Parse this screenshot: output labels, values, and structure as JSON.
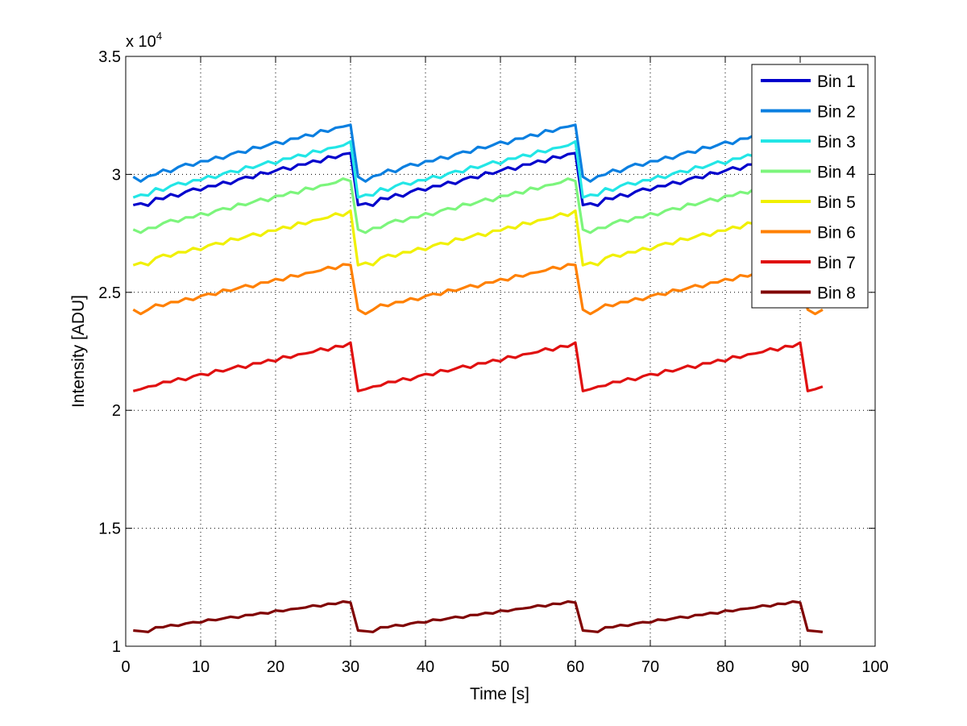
{
  "chart_data": {
    "type": "line",
    "title": "",
    "xlabel": "Time [s]",
    "ylabel": "Intensity [ADU]",
    "y_exponent_label": "x 10",
    "y_exponent_power": "4",
    "xlim": [
      0,
      100
    ],
    "ylim": [
      1.0,
      3.5
    ],
    "xticks": [
      0,
      10,
      20,
      30,
      40,
      50,
      60,
      70,
      80,
      90,
      100
    ],
    "xtick_labels": [
      "0",
      "10",
      "20",
      "30",
      "40",
      "50",
      "60",
      "70",
      "80",
      "90",
      "100"
    ],
    "yticks": [
      1.0,
      1.5,
      2.0,
      2.5,
      3.0,
      3.5
    ],
    "ytick_labels": [
      "1",
      "1.5",
      "2",
      "2.5",
      "3",
      "3.5"
    ],
    "grid": true,
    "legend_position": "top-right",
    "cycle": {
      "period_s": 30,
      "drop_s": 1,
      "total_points": 93,
      "dip_offset_index": 2,
      "noise_pattern": [
        0,
        0.012,
        -0.01,
        0.008,
        -0.006,
        0.01,
        -0.012,
        0.004,
        0.011,
        -0.008,
        0.006,
        -0.004,
        0.009,
        -0.011,
        0.003,
        0.007,
        -0.009,
        0.012,
        -0.005,
        0.002,
        0.01,
        -0.012,
        0.006,
        -0.003,
        0.008,
        -0.01,
        0.011,
        -0.007,
        0.004,
        0
      ]
    },
    "series": [
      {
        "name": "Bin 1",
        "color": "#0000cc",
        "start": 2.87,
        "peak": 3.09,
        "noise": 0.8
      },
      {
        "name": "Bin 2",
        "color": "#0a7fe0",
        "start": 2.98,
        "peak": 3.21,
        "noise": 0.8
      },
      {
        "name": "Bin 3",
        "color": "#22e6e6",
        "start": 2.91,
        "peak": 3.13,
        "noise": 0.8
      },
      {
        "name": "Bin 4",
        "color": "#7cf57c",
        "start": 2.76,
        "peak": 2.98,
        "noise": 0.8
      },
      {
        "name": "Bin 5",
        "color": "#f0f000",
        "start": 2.62,
        "peak": 2.84,
        "noise": 0.8
      },
      {
        "name": "Bin 6",
        "color": "#ff8000",
        "start": 2.42,
        "peak": 2.62,
        "noise": 0.7
      },
      {
        "name": "Bin 7",
        "color": "#e01010",
        "start": 2.09,
        "peak": 2.28,
        "noise": 0.7
      },
      {
        "name": "Bin 8",
        "color": "#800000",
        "start": 1.065,
        "peak": 1.19,
        "noise": 0.4
      }
    ]
  }
}
